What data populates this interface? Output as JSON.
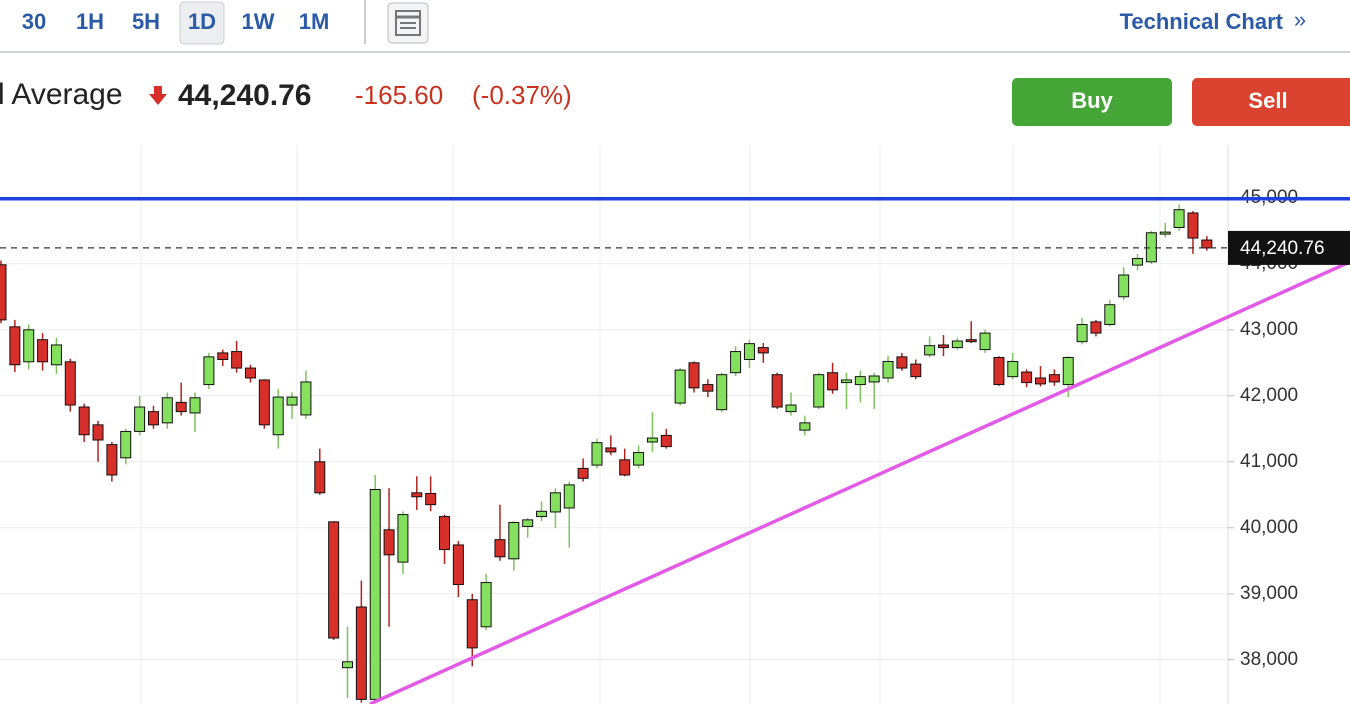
{
  "header": {
    "tabs": [
      "30",
      "1H",
      "5H",
      "1D",
      "1W",
      "1M"
    ],
    "selected_tab": "1D",
    "link": "Technical Chart",
    "link_arrow": "»",
    "index_name": "l Average",
    "price": "44,240.76",
    "change": "-165.60",
    "change_percent": "(-0.37%)",
    "buttons": [
      "Buy",
      "Sell"
    ]
  },
  "chart_data": {
    "type": "candlestick",
    "categories": [
      null,
      null,
      null,
      null,
      null,
      null,
      null,
      null,
      null,
      null,
      null,
      null,
      null,
      null,
      null,
      null,
      null,
      null,
      null,
      null,
      null,
      null,
      null,
      null,
      null,
      null,
      null,
      null,
      null,
      null,
      null,
      null,
      null,
      null,
      null,
      null,
      null,
      null,
      null,
      null,
      null,
      null,
      null,
      null,
      null,
      null,
      null,
      null,
      null,
      null,
      null,
      null,
      null,
      null,
      null,
      null,
      null,
      null,
      null,
      null,
      null,
      null,
      null,
      null,
      null,
      null,
      null,
      null,
      null,
      null,
      null,
      null,
      null,
      null,
      null,
      null,
      null,
      null,
      null,
      null,
      null,
      null,
      null,
      null,
      null,
      null,
      null,
      null
    ],
    "open": [
      43985,
      43045,
      42515,
      42850,
      42470,
      42515,
      41830,
      41560,
      41260,
      41060,
      41460,
      41760,
      41590,
      41900,
      41740,
      42170,
      42650,
      42670,
      42420,
      42240,
      41410,
      41860,
      41710,
      41000,
      40090,
      37880,
      38800,
      37400,
      39970,
      39480,
      40530,
      40520,
      40170,
      39740,
      38910,
      38500,
      39820,
      39530,
      40020,
      40170,
      40240,
      40300,
      40900,
      40950,
      41210,
      41030,
      40950,
      41300,
      41400,
      41890,
      42500,
      42170,
      41790,
      42350,
      42550,
      42730,
      42320,
      41760,
      41480,
      41830,
      42350,
      42200,
      42170,
      42210,
      42270,
      42590,
      42480,
      42620,
      42770,
      42730,
      42850,
      42700,
      42580,
      42290,
      42360,
      42270,
      42320,
      42170,
      42820,
      43120,
      43080,
      43500,
      43980,
      44030,
      44450,
      44550,
      44770,
      44360
    ],
    "high": [
      44050,
      43150,
      43080,
      42950,
      42880,
      42560,
      41880,
      41620,
      41300,
      41500,
      42000,
      41850,
      42050,
      42200,
      42050,
      42650,
      42700,
      42830,
      42470,
      42250,
      42100,
      42050,
      42380,
      41200,
      40100,
      38500,
      39200,
      40800,
      40600,
      40250,
      40780,
      40780,
      40200,
      39800,
      39000,
      39300,
      40350,
      40100,
      40150,
      40400,
      40600,
      40700,
      41050,
      41350,
      41400,
      41200,
      41250,
      41750,
      41500,
      42420,
      42520,
      42250,
      42350,
      42750,
      42850,
      42800,
      42350,
      42050,
      41700,
      42350,
      42500,
      42350,
      42380,
      42350,
      42600,
      42650,
      42550,
      42900,
      42920,
      42880,
      43130,
      43000,
      42600,
      42650,
      42400,
      42450,
      42400,
      42600,
      43180,
      43150,
      43450,
      43950,
      44150,
      44500,
      44620,
      44900,
      44800,
      44420
    ],
    "low": [
      43100,
      42360,
      42400,
      42380,
      42330,
      41760,
      41300,
      41000,
      40700,
      40960,
      41400,
      41500,
      41500,
      41700,
      41450,
      42100,
      42450,
      42350,
      42200,
      41500,
      41200,
      41650,
      41650,
      40500,
      38300,
      37420,
      37350,
      37350,
      38500,
      39300,
      40270,
      40250,
      39450,
      38950,
      37900,
      38450,
      39500,
      39350,
      39850,
      40100,
      40000,
      39700,
      40700,
      40900,
      41100,
      40780,
      40900,
      41150,
      41200,
      41850,
      42050,
      41980,
      41750,
      42300,
      42420,
      42500,
      41800,
      41700,
      41400,
      41800,
      42030,
      41800,
      41900,
      41800,
      42200,
      42380,
      42250,
      42580,
      42600,
      42700,
      42800,
      42650,
      42150,
      42250,
      42130,
      42140,
      42150,
      41980,
      42780,
      42900,
      43050,
      43450,
      43900,
      44000,
      44400,
      44500,
      44150,
      44200
    ],
    "close": [
      43150,
      42470,
      43000,
      42515,
      42770,
      41860,
      41410,
      41330,
      40800,
      41460,
      41830,
      41560,
      41970,
      41760,
      41970,
      42590,
      42550,
      42420,
      42270,
      41560,
      41980,
      41980,
      42210,
      40530,
      38330,
      37970,
      37400,
      40580,
      39590,
      40200,
      40470,
      40350,
      39670,
      39140,
      38180,
      39170,
      39560,
      40080,
      40120,
      40250,
      40530,
      40650,
      40750,
      41290,
      41150,
      40800,
      41140,
      41360,
      41230,
      42390,
      42120,
      42070,
      42320,
      42670,
      42790,
      42650,
      41830,
      41860,
      41590,
      42320,
      42090,
      42240,
      42290,
      42300,
      42520,
      42420,
      42290,
      42760,
      42730,
      42830,
      42820,
      42950,
      42170,
      42520,
      42200,
      42180,
      42210,
      42580,
      43080,
      42950,
      43380,
      43830,
      44080,
      44470,
      44480,
      44820,
      44390,
      44240
    ],
    "up_color": "#86e05f",
    "down_color": "#d7302a",
    "up_wick_color": "#7cc45c",
    "down_wick_color": "#b0231f",
    "ylim": [
      37330,
      45800
    ],
    "yticks": [
      {
        "value": 38000,
        "label": "38,000"
      },
      {
        "value": 39000,
        "label": "39,000"
      },
      {
        "value": 40000,
        "label": "40,000"
      },
      {
        "value": 41000,
        "label": "41,000"
      },
      {
        "value": 42000,
        "label": "42,000"
      },
      {
        "value": 43000,
        "label": "43,000"
      },
      {
        "value": 44000,
        "label": "44,000"
      },
      {
        "value": 45000,
        "label": "45,000"
      }
    ],
    "grid": true,
    "last_price": {
      "value": 44240.76,
      "label": "44,240.76"
    },
    "horizontal_line": {
      "value": 44985,
      "color": "#1f3fe0"
    },
    "trend_line": {
      "values": [
        37330,
        44030
      ],
      "color": "#e25ae6"
    }
  }
}
